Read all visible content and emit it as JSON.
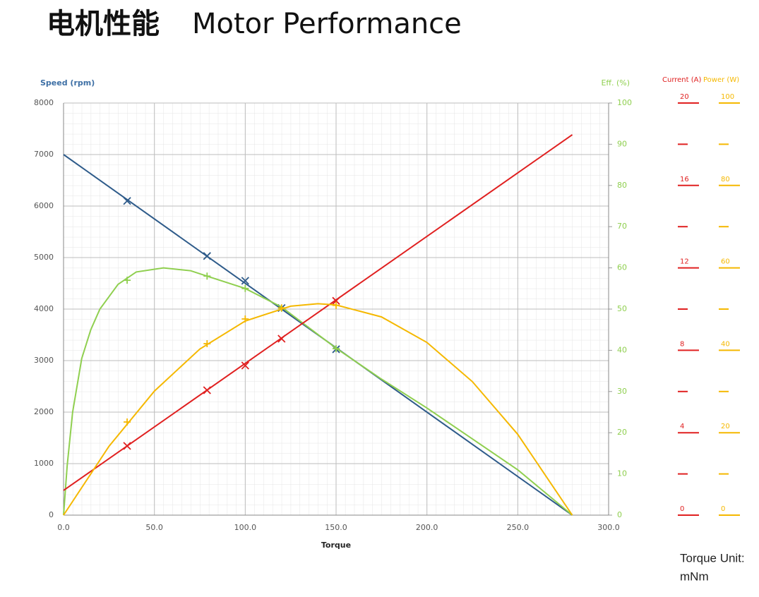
{
  "chart_data": {
    "type": "line",
    "title": "电机性能",
    "subtitle": "Motor Performance",
    "xlabel": "Torque",
    "ylabel": "Speed (rpm)",
    "y2label": "Eff. (%)",
    "xlim": [
      0,
      300
    ],
    "xticks": [
      {
        "value": 0,
        "label": "0.0"
      },
      {
        "value": 50,
        "label": "50.0"
      },
      {
        "value": 100,
        "label": "100.0"
      },
      {
        "value": 150,
        "label": "150.0"
      },
      {
        "value": 200,
        "label": "200.0"
      },
      {
        "value": 250,
        "label": "250.0"
      },
      {
        "value": 300,
        "label": "300.0"
      }
    ],
    "ylim": [
      0,
      8000
    ],
    "yticks": [
      0,
      1000,
      2000,
      3000,
      4000,
      5000,
      6000,
      7000,
      8000
    ],
    "y2lim": [
      0,
      100
    ],
    "y2ticks": [
      0,
      10,
      20,
      30,
      40,
      50,
      60,
      70,
      80,
      90,
      100
    ],
    "current_axis": {
      "label": "Current (A)",
      "color": "#e02020",
      "lim": [
        0,
        20
      ],
      "ticks": [
        0,
        4,
        8,
        12,
        16,
        20
      ],
      "minor_ticks": [
        2,
        6,
        10,
        14,
        18
      ]
    },
    "power_axis": {
      "label": "Power (W)",
      "color": "#f5b800",
      "lim": [
        0,
        100
      ],
      "ticks": [
        0,
        20,
        40,
        60,
        80,
        100
      ],
      "minor_ticks": [
        10,
        30,
        50,
        70,
        90
      ]
    },
    "grid": true,
    "marker_x": [
      35,
      79,
      100,
      120,
      150
    ],
    "series": [
      {
        "name": "Speed",
        "axis": "y",
        "color": "#2e5b8a",
        "marker": "x",
        "x": [
          0,
          280
        ],
        "values": [
          7000,
          0
        ],
        "marker_values": [
          6100,
          5030,
          4550,
          4020,
          3220
        ]
      },
      {
        "name": "Efficiency",
        "axis": "y2",
        "color": "#8fcf4f",
        "marker": "+",
        "x": [
          0,
          2,
          5,
          10,
          15,
          20,
          30,
          40,
          55,
          70,
          79,
          100,
          120,
          150,
          175,
          200,
          225,
          250,
          280
        ],
        "values": [
          0,
          12,
          25,
          38,
          45,
          50,
          56,
          59,
          60,
          59.3,
          58,
          55,
          50.5,
          40.5,
          33,
          26,
          18.5,
          11,
          0
        ],
        "marker_values": [
          57,
          58,
          55,
          50.2,
          40.4
        ]
      },
      {
        "name": "Current",
        "axis": "current",
        "color": "#e02020",
        "marker": "x",
        "x": [
          0,
          280
        ],
        "values": [
          1.2,
          18.46
        ],
        "marker_values": [
          3.36,
          6.06,
          7.26,
          8.56,
          10.4
        ]
      },
      {
        "name": "Power",
        "axis": "power",
        "color": "#f5b800",
        "marker": "+",
        "x": [
          0,
          25,
          50,
          75,
          100,
          125,
          140,
          150,
          175,
          200,
          225,
          250,
          280
        ],
        "values": [
          0,
          16.7,
          30.1,
          40.3,
          47.1,
          50.7,
          51.3,
          51.0,
          48.1,
          41.9,
          32.4,
          19.6,
          0
        ],
        "marker_values": [
          22.6,
          41.6,
          47.6,
          50.3,
          50.9
        ]
      }
    ],
    "note": [
      "Torque Unit:",
      "mNm"
    ]
  }
}
